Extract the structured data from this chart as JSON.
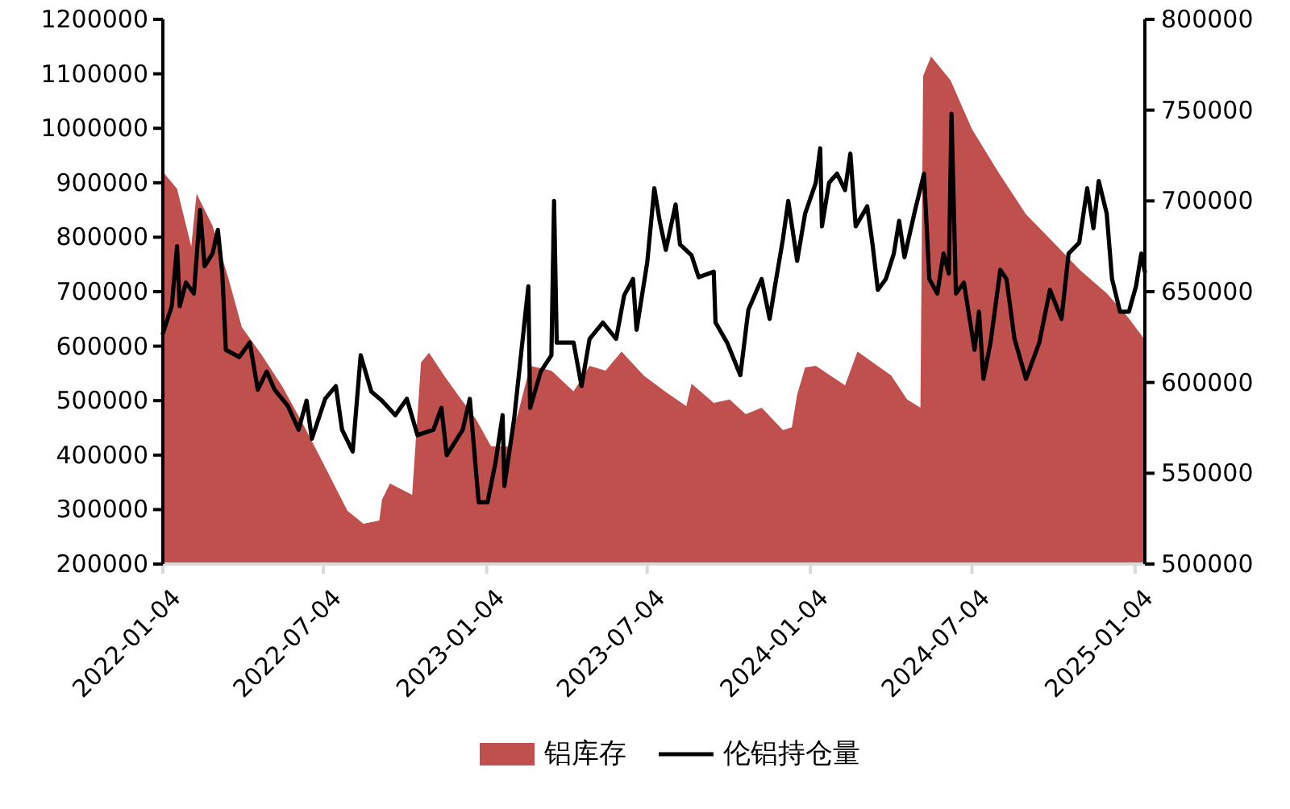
{
  "chart_data": {
    "type": "line",
    "xlim": [
      "2022-01-04",
      "2025-01-15"
    ],
    "xticks": [
      "2022-01-04",
      "2022-07-04",
      "2023-01-04",
      "2023-07-04",
      "2024-01-04",
      "2024-07-04",
      "2025-01-04"
    ],
    "ylim": [
      200000,
      1200000
    ],
    "yticks": [
      200000,
      300000,
      400000,
      500000,
      600000,
      700000,
      800000,
      900000,
      1000000,
      1100000,
      1200000
    ],
    "y2lim": [
      500000,
      800000
    ],
    "y2ticks": [
      500000,
      550000,
      600000,
      650000,
      700000,
      750000,
      800000
    ],
    "legend": "bottom",
    "series": [
      {
        "name": "铝库存",
        "type": "area",
        "color": "#c0504d",
        "x": [
          "2022-01-04",
          "2022-01-20",
          "2022-02-05",
          "2022-02-11",
          "2022-03-01",
          "2022-03-19",
          "2022-04-03",
          "2022-04-25",
          "2022-05-19",
          "2022-06-11",
          "2022-07-06",
          "2022-07-31",
          "2022-08-18",
          "2022-09-05",
          "2022-09-08",
          "2022-09-17",
          "2022-10-12",
          "2022-10-22",
          "2022-10-31",
          "2022-11-17",
          "2022-12-05",
          "2022-12-23",
          "2023-01-09",
          "2023-01-29",
          "2023-02-10",
          "2023-02-22",
          "2023-03-18",
          "2023-04-12",
          "2023-04-30",
          "2023-05-18",
          "2023-06-05",
          "2023-06-30",
          "2023-07-24",
          "2023-08-17",
          "2023-08-23",
          "2023-09-17",
          "2023-10-05",
          "2023-10-23",
          "2023-11-10",
          "2023-12-04",
          "2023-12-14",
          "2023-12-20",
          "2023-12-29",
          "2024-01-10",
          "2024-02-12",
          "2024-02-26",
          "2024-04-04",
          "2024-04-22",
          "2024-05-07",
          "2024-05-10",
          "2024-05-19",
          "2024-06-10",
          "2024-07-04",
          "2024-08-03",
          "2024-09-03",
          "2024-10-03",
          "2024-11-02",
          "2024-12-03",
          "2024-12-27",
          "2025-01-14"
        ],
        "values": [
          920000,
          889000,
          783000,
          880000,
          821000,
          724000,
          635000,
          585000,
          525000,
          457000,
          378000,
          298000,
          274000,
          280000,
          318000,
          348000,
          327000,
          570000,
          588000,
          546000,
          505000,
          466000,
          416000,
          416000,
          487000,
          564000,
          555000,
          517000,
          564000,
          555000,
          590000,
          546000,
          517000,
          490000,
          531000,
          496000,
          502000,
          475000,
          487000,
          446000,
          451000,
          511000,
          561000,
          564000,
          528000,
          590000,
          546000,
          502000,
          487000,
          1096000,
          1132000,
          1088000,
          999000,
          919000,
          842000,
          792000,
          741000,
          697000,
          653000,
          614000
        ]
      },
      {
        "name": "伦铝持仓量",
        "type": "line",
        "axis": "y2",
        "color": "#000000",
        "x": [
          "2022-01-04",
          "2022-01-14",
          "2022-01-20",
          "2022-01-23",
          "2022-01-30",
          "2022-02-08",
          "2022-02-15",
          "2022-02-20",
          "2022-03-01",
          "2022-03-07",
          "2022-03-12",
          "2022-03-16",
          "2022-03-31",
          "2022-04-12",
          "2022-04-21",
          "2022-05-01",
          "2022-05-10",
          "2022-05-25",
          "2022-06-06",
          "2022-06-15",
          "2022-06-21",
          "2022-07-06",
          "2022-07-18",
          "2022-07-25",
          "2022-08-06",
          "2022-08-15",
          "2022-08-27",
          "2022-09-08",
          "2022-09-23",
          "2022-10-06",
          "2022-10-18",
          "2022-11-05",
          "2022-11-14",
          "2022-11-20",
          "2022-12-08",
          "2022-12-16",
          "2022-12-26",
          "2023-01-05",
          "2023-01-14",
          "2023-01-22",
          "2023-01-24",
          "2023-02-04",
          "2023-02-20",
          "2023-02-22",
          "2023-03-06",
          "2023-03-18",
          "2023-03-21",
          "2023-03-24",
          "2023-04-12",
          "2023-04-21",
          "2023-04-30",
          "2023-05-15",
          "2023-05-30",
          "2023-06-08",
          "2023-06-18",
          "2023-06-22",
          "2023-07-04",
          "2023-07-12",
          "2023-07-18",
          "2023-07-25",
          "2023-08-05",
          "2023-08-10",
          "2023-08-23",
          "2023-08-31",
          "2023-09-17",
          "2023-09-19",
          "2023-10-02",
          "2023-10-17",
          "2023-10-26",
          "2023-11-10",
          "2023-11-19",
          "2023-11-25",
          "2023-12-04",
          "2023-12-10",
          "2023-12-20",
          "2023-12-29",
          "2024-01-10",
          "2024-01-15",
          "2024-01-17",
          "2024-01-25",
          "2024-02-03",
          "2024-02-12",
          "2024-02-18",
          "2024-02-24",
          "2024-03-08",
          "2024-03-14",
          "2024-03-20",
          "2024-03-29",
          "2024-04-07",
          "2024-04-13",
          "2024-04-19",
          "2024-05-01",
          "2024-05-11",
          "2024-05-17",
          "2024-05-26",
          "2024-06-02",
          "2024-06-08",
          "2024-06-11",
          "2024-06-16",
          "2024-06-25",
          "2024-07-07",
          "2024-07-12",
          "2024-07-17",
          "2024-07-25",
          "2024-08-05",
          "2024-08-12",
          "2024-08-21",
          "2024-09-03",
          "2024-09-18",
          "2024-09-30",
          "2024-10-13",
          "2024-10-21",
          "2024-11-02",
          "2024-11-11",
          "2024-11-18",
          "2024-11-24",
          "2024-12-03",
          "2024-12-09",
          "2024-12-18",
          "2024-12-28",
          "2025-01-05",
          "2025-01-11",
          "2025-01-15"
        ],
        "values": [
          627000,
          642000,
          675000,
          642000,
          655000,
          649000,
          695000,
          664000,
          671000,
          684000,
          660000,
          618000,
          614000,
          622000,
          596000,
          606000,
          596000,
          587000,
          574000,
          590000,
          569000,
          591000,
          598000,
          574000,
          562000,
          615000,
          595000,
          590000,
          582000,
          591000,
          571000,
          574000,
          586000,
          560000,
          574000,
          591000,
          534000,
          534000,
          556000,
          582000,
          543000,
          580000,
          653000,
          586000,
          606000,
          615000,
          700000,
          622000,
          622000,
          598000,
          624000,
          633000,
          624000,
          648000,
          657000,
          629000,
          666000,
          707000,
          689000,
          673000,
          698000,
          676000,
          670000,
          658000,
          661000,
          633000,
          622000,
          604000,
          640000,
          657000,
          635000,
          653000,
          679000,
          700000,
          667000,
          693000,
          710000,
          729000,
          686000,
          710000,
          715000,
          706000,
          726000,
          686000,
          697000,
          676000,
          651000,
          657000,
          671000,
          689000,
          669000,
          695000,
          715000,
          657000,
          649000,
          671000,
          660000,
          748000,
          649000,
          655000,
          618000,
          639000,
          602000,
          622000,
          662000,
          657000,
          624000,
          602000,
          622000,
          651000,
          635000,
          671000,
          677000,
          707000,
          685000,
          711000,
          693000,
          657000,
          639000,
          639000,
          653000,
          671000,
          661000
        ]
      }
    ]
  }
}
